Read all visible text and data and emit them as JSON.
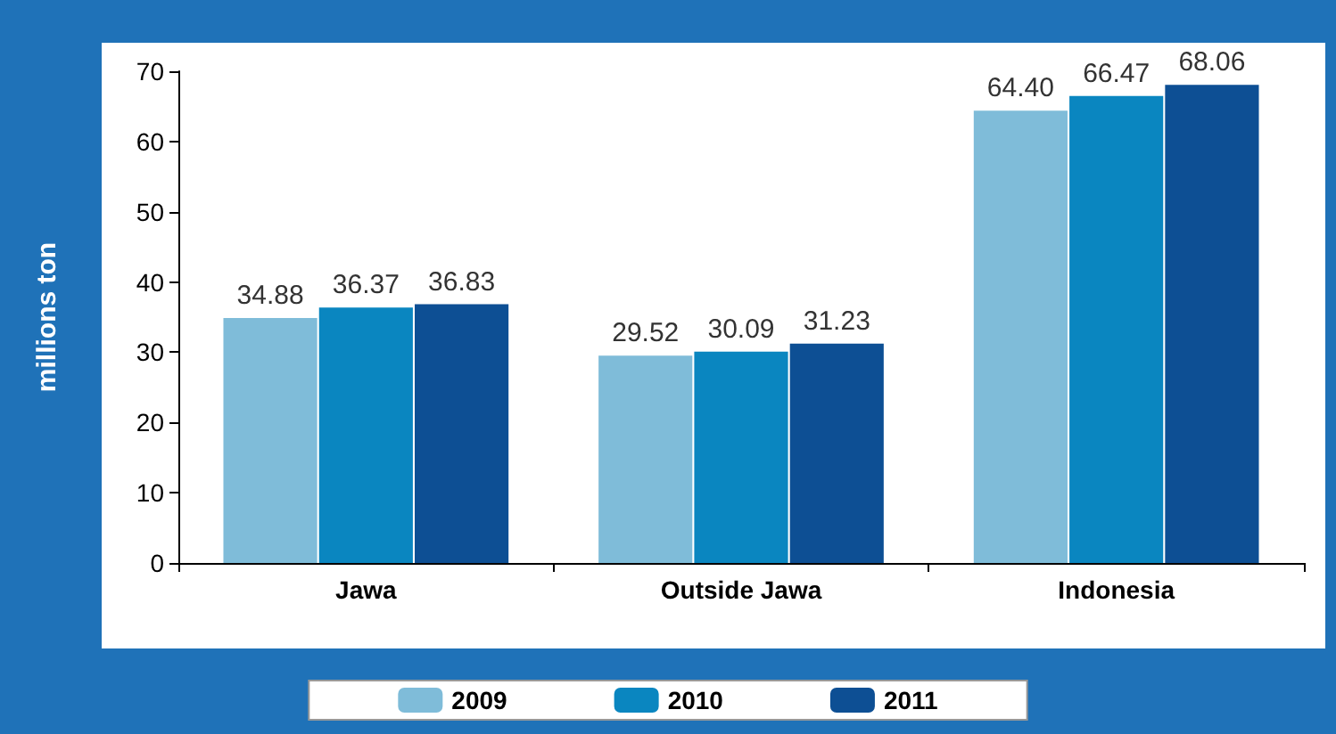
{
  "chart_data": {
    "type": "bar",
    "ylabel": "millions ton",
    "categories": [
      "Jawa",
      "Outside Jawa",
      "Indonesia"
    ],
    "series": [
      {
        "name": "2009",
        "color": "#7fbcd9",
        "values": [
          34.88,
          29.52,
          64.4
        ],
        "value_labels": [
          "34.88",
          "29.52",
          "64.40"
        ]
      },
      {
        "name": "2010",
        "color": "#0a86c0",
        "values": [
          36.37,
          30.09,
          66.47
        ],
        "value_labels": [
          "36.37",
          "30.09",
          "66.47"
        ]
      },
      {
        "name": "2011",
        "color": "#0d4f94",
        "values": [
          36.83,
          31.23,
          68.06
        ],
        "value_labels": [
          "36.83",
          "31.23",
          "68.06"
        ]
      }
    ],
    "ylim": [
      0,
      70
    ],
    "yticks": [
      0,
      10,
      20,
      30,
      40,
      50,
      60,
      70
    ],
    "grid": false,
    "legend": "bottom"
  }
}
